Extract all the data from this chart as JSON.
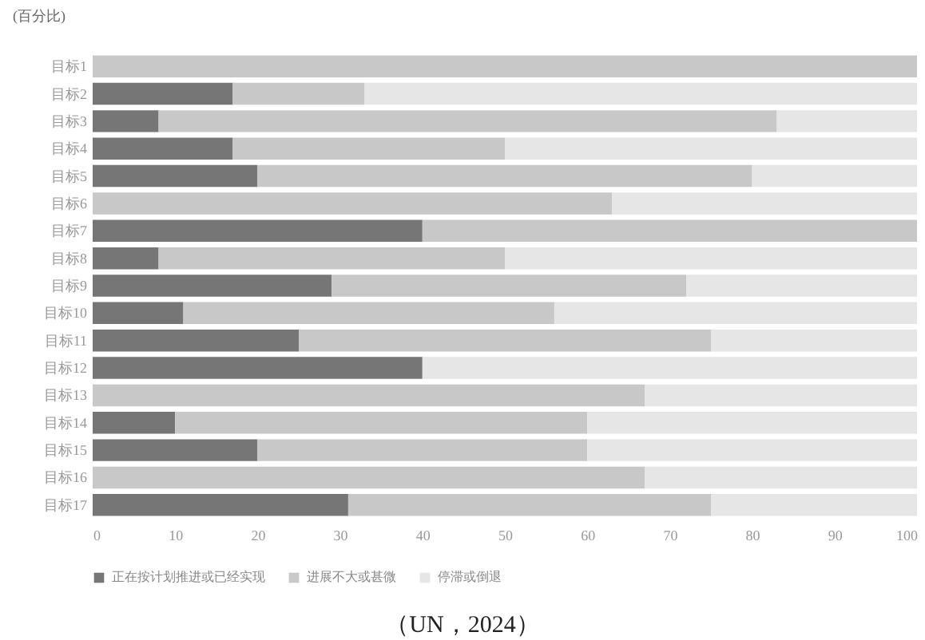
{
  "chart_data": {
    "type": "bar",
    "orientation": "horizontal",
    "stacked": true,
    "title": "(百分比)",
    "annotations": [
      "（UN，2024）"
    ],
    "categories": [
      "目标1",
      "目标2",
      "目标3",
      "目标4",
      "目标5",
      "目标6",
      "目标7",
      "目标8",
      "目标9",
      "目标10",
      "目标11",
      "目标12",
      "目标13",
      "目标14",
      "目标15",
      "目标16",
      "目标17"
    ],
    "series": [
      {
        "name": "正在按计划推进或已经实现",
        "color": "#767676",
        "values": [
          0,
          17,
          8,
          17,
          20,
          0,
          40,
          8,
          29,
          11,
          25,
          40,
          0,
          10,
          20,
          0,
          31
        ]
      },
      {
        "name": "进展不大或甚微",
        "color": "#c8c8c8",
        "values": [
          100,
          16,
          75,
          33,
          60,
          63,
          60,
          42,
          43,
          45,
          50,
          0,
          67,
          50,
          40,
          67,
          44
        ]
      },
      {
        "name": "停滞或倒退",
        "color": "#e6e6e6",
        "values": [
          0,
          67,
          17,
          50,
          20,
          37,
          0,
          50,
          28,
          44,
          25,
          60,
          33,
          40,
          40,
          33,
          25
        ]
      }
    ],
    "xlim": [
      0,
      100
    ],
    "xticks": [
      0,
      10,
      20,
      30,
      40,
      50,
      60,
      70,
      80,
      90,
      100
    ],
    "grid": false,
    "legend": "bottom"
  }
}
